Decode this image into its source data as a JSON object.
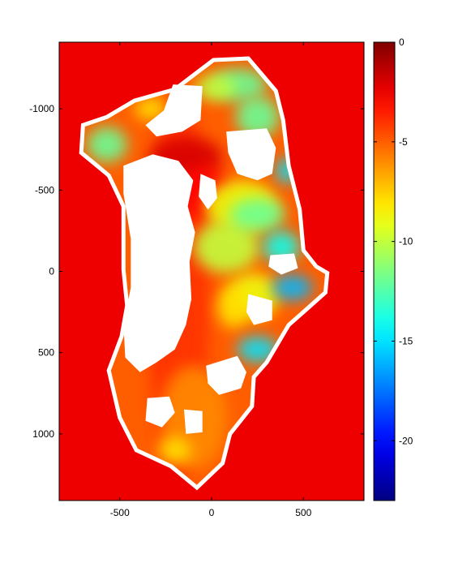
{
  "chart_data": {
    "type": "heatmap",
    "title": "",
    "xlabel": "",
    "ylabel": "",
    "xlim": [
      -830,
      830
    ],
    "ylim": [
      1410,
      -1410
    ],
    "y_direction": "reversed",
    "x_ticks": [
      -500,
      0,
      500
    ],
    "x_tick_labels": [
      "-500",
      "0",
      "500"
    ],
    "y_ticks": [
      -1000,
      -500,
      0,
      500,
      1000
    ],
    "y_tick_labels": [
      "-1000",
      "-500",
      "0",
      "500",
      "1000"
    ],
    "colorbar": {
      "colormap": "jet",
      "range": [
        -23,
        0
      ],
      "ticks": [
        0,
        -5,
        -10,
        -15,
        -20
      ],
      "tick_labels": [
        "0",
        "-5",
        "-10",
        "-15",
        "-20"
      ]
    },
    "background_value": -2.5,
    "nodata_color": "#ffffff",
    "region": {
      "outline": [
        [
          10,
          -1300
        ],
        [
          200,
          -1310
        ],
        [
          350,
          -1110
        ],
        [
          390,
          -930
        ],
        [
          420,
          -650
        ],
        [
          480,
          -380
        ],
        [
          500,
          -130
        ],
        [
          570,
          -30
        ],
        [
          630,
          10
        ],
        [
          620,
          130
        ],
        [
          520,
          230
        ],
        [
          420,
          330
        ],
        [
          300,
          560
        ],
        [
          230,
          650
        ],
        [
          220,
          830
        ],
        [
          100,
          1000
        ],
        [
          60,
          1180
        ],
        [
          -80,
          1330
        ],
        [
          -220,
          1200
        ],
        [
          -410,
          1100
        ],
        [
          -500,
          900
        ],
        [
          -560,
          610
        ],
        [
          -490,
          400
        ],
        [
          -460,
          210
        ],
        [
          -480,
          -10
        ],
        [
          -480,
          -400
        ],
        [
          -560,
          -590
        ],
        [
          -710,
          -730
        ],
        [
          -700,
          -900
        ],
        [
          -570,
          -950
        ],
        [
          -420,
          -1050
        ],
        [
          -200,
          -1120
        ]
      ],
      "nodata_areas": [
        [
          [
            -210,
            -1150
          ],
          [
            -50,
            -1140
          ],
          [
            -60,
            -930
          ],
          [
            -160,
            -860
          ],
          [
            -300,
            -830
          ],
          [
            -360,
            -900
          ],
          [
            -260,
            -990
          ]
        ],
        [
          [
            -480,
            -650
          ],
          [
            -320,
            -720
          ],
          [
            -180,
            -680
          ],
          [
            -100,
            -560
          ],
          [
            -130,
            -400
          ],
          [
            -90,
            -240
          ],
          [
            -120,
            -60
          ],
          [
            -110,
            170
          ],
          [
            -140,
            330
          ],
          [
            -200,
            480
          ],
          [
            -300,
            560
          ],
          [
            -390,
            620
          ],
          [
            -470,
            530
          ],
          [
            -480,
            330
          ],
          [
            -440,
            100
          ],
          [
            -440,
            -200
          ],
          [
            -480,
            -480
          ]
        ],
        [
          [
            80,
            -860
          ],
          [
            300,
            -880
          ],
          [
            350,
            -760
          ],
          [
            330,
            -600
          ],
          [
            250,
            -560
          ],
          [
            140,
            -600
          ],
          [
            90,
            -730
          ]
        ],
        [
          [
            -60,
            -600
          ],
          [
            20,
            -560
          ],
          [
            30,
            -450
          ],
          [
            -20,
            -380
          ],
          [
            -70,
            -460
          ]
        ],
        [
          [
            320,
            -100
          ],
          [
            450,
            -110
          ],
          [
            470,
            -20
          ],
          [
            380,
            20
          ],
          [
            310,
            -30
          ]
        ],
        [
          [
            200,
            140
          ],
          [
            330,
            180
          ],
          [
            330,
            300
          ],
          [
            230,
            330
          ],
          [
            190,
            250
          ]
        ],
        [
          [
            -30,
            580
          ],
          [
            140,
            520
          ],
          [
            190,
            620
          ],
          [
            160,
            720
          ],
          [
            40,
            760
          ],
          [
            -20,
            690
          ]
        ],
        [
          [
            -350,
            780
          ],
          [
            -230,
            770
          ],
          [
            -200,
            870
          ],
          [
            -270,
            960
          ],
          [
            -360,
            920
          ]
        ],
        [
          [
            -150,
            850
          ],
          [
            -50,
            860
          ],
          [
            -50,
            990
          ],
          [
            -140,
            1000
          ]
        ]
      ],
      "value_patches": [
        {
          "x": -180,
          "y": 100,
          "rx": 170,
          "ry": 1200,
          "value": -4
        },
        {
          "x": -140,
          "y": -700,
          "rx": 200,
          "ry": 130,
          "value": -2
        },
        {
          "x": -40,
          "y": -480,
          "rx": 140,
          "ry": 160,
          "value": -3
        },
        {
          "x": -100,
          "y": 900,
          "rx": 180,
          "ry": 320,
          "value": -6
        },
        {
          "x": 160,
          "y": -400,
          "rx": 200,
          "ry": 160,
          "value": -9
        },
        {
          "x": 80,
          "y": -150,
          "rx": 180,
          "ry": 160,
          "value": -10
        },
        {
          "x": 250,
          "y": -350,
          "rx": 150,
          "ry": 100,
          "value": -12
        },
        {
          "x": 230,
          "y": 150,
          "rx": 140,
          "ry": 140,
          "value": -9
        },
        {
          "x": 120,
          "y": 220,
          "rx": 90,
          "ry": 130,
          "value": -8
        },
        {
          "x": 150,
          "y": -1150,
          "rx": 150,
          "ry": 100,
          "value": -12
        },
        {
          "x": 20,
          "y": -1130,
          "rx": 110,
          "ry": 80,
          "value": -10
        },
        {
          "x": -330,
          "y": -1000,
          "rx": 90,
          "ry": 70,
          "value": -8
        },
        {
          "x": 250,
          "y": -950,
          "rx": 120,
          "ry": 130,
          "value": -12
        },
        {
          "x": -570,
          "y": -780,
          "rx": 110,
          "ry": 110,
          "value": -12
        },
        {
          "x": 380,
          "y": -150,
          "rx": 100,
          "ry": 100,
          "value": -14
        },
        {
          "x": 440,
          "y": 100,
          "rx": 110,
          "ry": 80,
          "value": -16
        },
        {
          "x": 250,
          "y": 480,
          "rx": 110,
          "ry": 80,
          "value": -15
        },
        {
          "x": 410,
          "y": -620,
          "rx": 60,
          "ry": 80,
          "value": -15
        },
        {
          "x": -200,
          "y": 1100,
          "rx": 90,
          "ry": 80,
          "value": -8
        }
      ]
    }
  }
}
